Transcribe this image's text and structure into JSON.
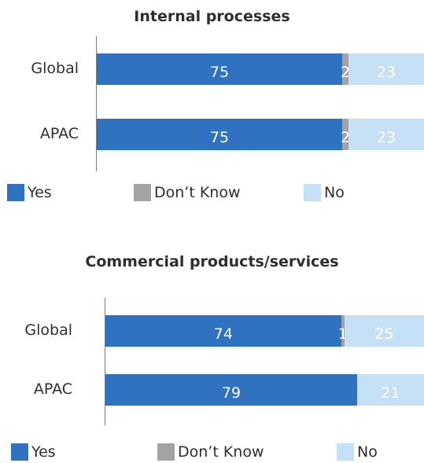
{
  "colors": {
    "Yes": "#2e72c0",
    "Don’t Know": "#a3a3a3",
    "No": "#c6e1f5"
  },
  "chart_data": [
    {
      "type": "bar",
      "orientation": "horizontal-stacked",
      "title": "Internal processes",
      "categories": [
        "Global",
        "APAC"
      ],
      "series": [
        {
          "name": "Yes",
          "values": [
            75,
            75
          ]
        },
        {
          "name": "Don’t Know",
          "values": [
            2,
            2
          ]
        },
        {
          "name": "No",
          "values": [
            23,
            23
          ]
        }
      ],
      "legend": [
        "Yes",
        "Don’t Know",
        "No"
      ]
    },
    {
      "type": "bar",
      "orientation": "horizontal-stacked",
      "title": "Commercial products/services",
      "categories": [
        "Global",
        "APAC"
      ],
      "series": [
        {
          "name": "Yes",
          "values": [
            74,
            79
          ]
        },
        {
          "name": "Don’t Know",
          "values": [
            1,
            null
          ]
        },
        {
          "name": "No",
          "values": [
            25,
            21
          ]
        }
      ],
      "legend": [
        "Yes",
        "Don’t Know",
        "No"
      ]
    }
  ]
}
